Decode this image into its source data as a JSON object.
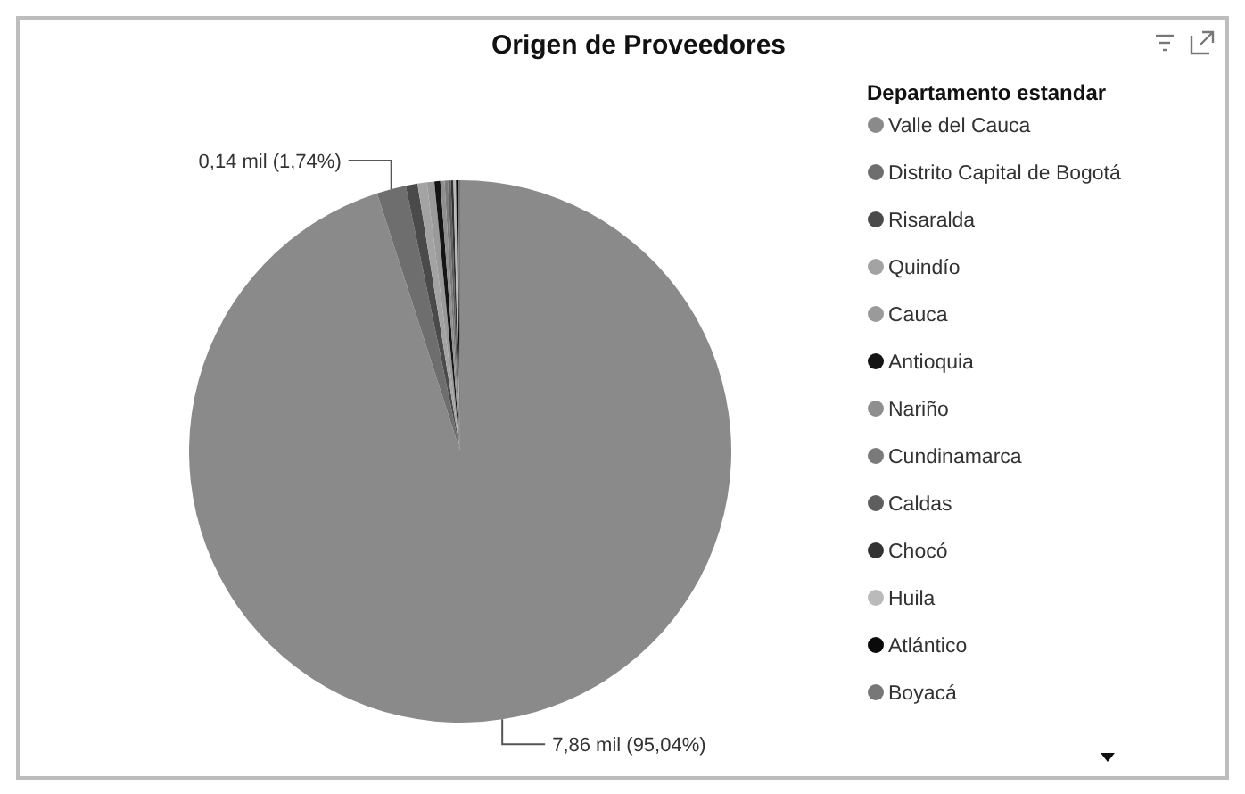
{
  "chart_data": {
    "type": "pie",
    "title": "Origen de Proveedores",
    "legend_title": "Departamento estandar",
    "legend": "right",
    "categories": [
      "Valle del Cauca",
      "Distrito Capital de Bogotá",
      "Risaralda",
      "Quindío",
      "Cauca",
      "Antioquia",
      "Nariño",
      "Cundinamarca",
      "Caldas",
      "Chocó",
      "Huila",
      "Atlántico",
      "Boyacá"
    ],
    "values": [
      95.04,
      1.74,
      0.7,
      0.55,
      0.45,
      0.35,
      0.25,
      0.2,
      0.17,
      0.15,
      0.15,
      0.13,
      0.12
    ],
    "value_labels": [
      "7,86 mil (95,04%)",
      "0,14 mil (1,74%)",
      null,
      null,
      null,
      null,
      null,
      null,
      null,
      null,
      null,
      null,
      null
    ],
    "colors": [
      "#8a8a8a",
      "#6e6e6e",
      "#4a4a4a",
      "#a3a3a3",
      "#9a9a9a",
      "#151515",
      "#8f8f8f",
      "#7a7a7a",
      "#5e5e5e",
      "#333333",
      "#bababa",
      "#0a0a0a",
      "#777777"
    ]
  }
}
